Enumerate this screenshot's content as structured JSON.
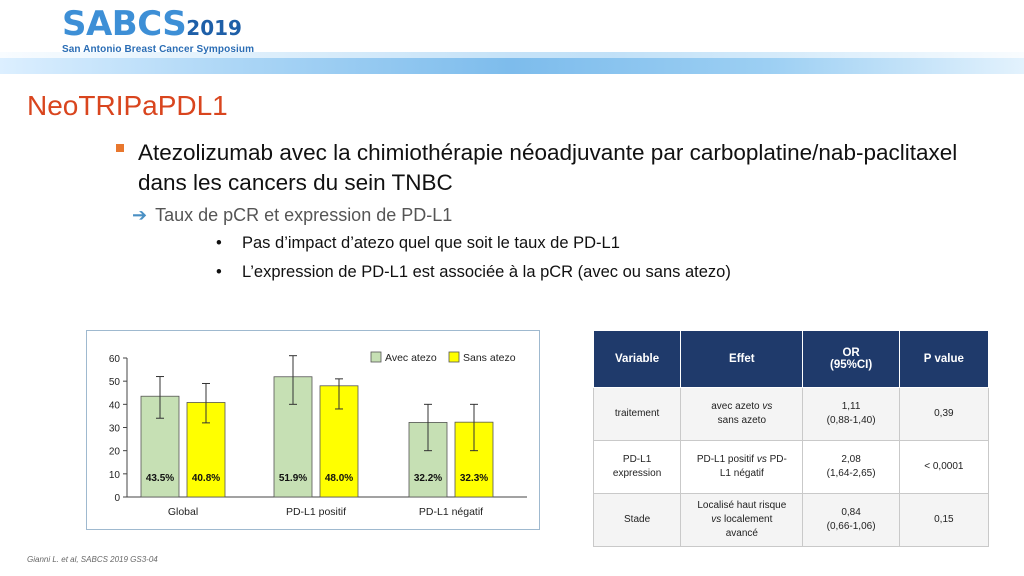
{
  "header": {
    "logo_main": "SABCS",
    "logo_year": "2019",
    "logo_sub": "San Antonio Breast Cancer Symposium"
  },
  "title": "NeoTRIPaPDL1",
  "bullet_main": "Atezolizumab avec la chimiothérapie néoadjuvante par carboplatine/nab-paclitaxel dans les cancers du sein TNBC",
  "arrow_item": "Taux de pCR et expression de PD-L1",
  "sub_bullets": [
    "Pas d’impact d’atezo quel que soit le taux de PD-L1",
    "L’expression de PD-L1 est associée à la pCR (avec ou sans atezo)"
  ],
  "chart_data": {
    "type": "bar",
    "categories": [
      "Global",
      "PD-L1 positif",
      "PD-L1 négatif"
    ],
    "series": [
      {
        "name": "Avec atezo",
        "color": "#c6e0b4",
        "values": [
          43.5,
          51.9,
          32.2
        ],
        "labels": [
          "43.5%",
          "51.9%",
          "32.2%"
        ],
        "err_low": [
          34,
          40,
          20
        ],
        "err_high": [
          52,
          61,
          40
        ]
      },
      {
        "name": "Sans atezo",
        "color": "#ffff00",
        "values": [
          40.8,
          48.0,
          32.3
        ],
        "labels": [
          "40.8%",
          "48.0%",
          "32.3%"
        ],
        "err_low": [
          32,
          38,
          20
        ],
        "err_high": [
          49,
          51,
          40
        ]
      }
    ],
    "ylim": [
      0,
      60
    ],
    "yticks": [
      0,
      10,
      20,
      30,
      40,
      50,
      60
    ],
    "xlabel": "",
    "ylabel": "",
    "legend": "top-right",
    "grid": false
  },
  "table": {
    "headers": [
      "Variable",
      "Effet",
      "OR\n(95%CI)",
      "P value"
    ],
    "rows": [
      [
        "traitement",
        "avec azeto vs\nsans azeto",
        "1,11\n(0,88-1,40)",
        "0,39"
      ],
      [
        "PD-L1\nexpression",
        "PD-L1 positif vs PD-\nL1 négatif",
        "2,08\n(1,64-2,65)",
        "< 0,0001"
      ],
      [
        "Stade",
        "Localisé haut risque\nvs localement\navancé",
        "0,84\n(0,66-1,06)",
        "0,15"
      ]
    ]
  },
  "footnote": "Gianni L. et al, SABCS 2019 GS3-04"
}
